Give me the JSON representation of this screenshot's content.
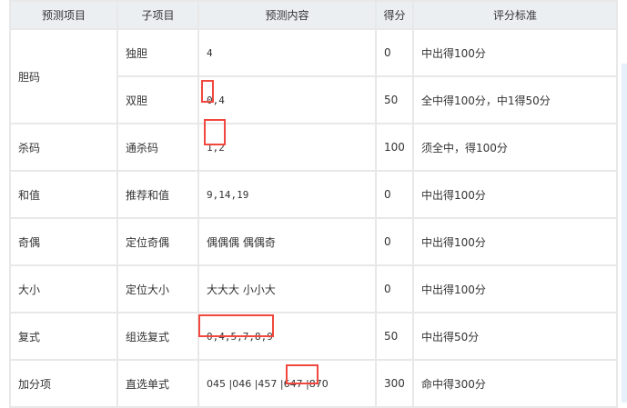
{
  "headers": [
    "预测项目",
    "子项目",
    "预测内容",
    "得分",
    "评分标准"
  ],
  "rows": [
    {
      "item": "胆码",
      "sub": "独胆",
      "content": "4",
      "score": "0",
      "rule": "中出得100分"
    },
    {
      "sub": "双胆",
      "content": "0,4",
      "score": "50",
      "rule": "全中得100分，中1得50分"
    },
    {
      "item": "杀码",
      "sub": "通杀码",
      "content": "1,2",
      "score": "100",
      "rule": "须全中，得100分"
    },
    {
      "item": "和值",
      "sub": "推荐和值",
      "content": "9,14,19",
      "score": "0",
      "rule": "中出得100分"
    },
    {
      "item": "奇偶",
      "sub": "定位奇偶",
      "content": "偶偶偶 偶偶奇",
      "score": "0",
      "rule": "中出得100分"
    },
    {
      "item": "大小",
      "sub": "定位大小",
      "content": "大大大 小小大",
      "score": "0",
      "rule": "中出得100分"
    },
    {
      "item": "复式",
      "sub": "组选复式",
      "content": "0,4,5,7,8,9",
      "score": "50",
      "rule": "中出得50分"
    },
    {
      "item": "加分项",
      "sub": "直选单式",
      "content": "045 |046 |457 |647 |870",
      "score": "300",
      "rule": "命中得300分"
    }
  ],
  "highlight_color": "#f0483e"
}
